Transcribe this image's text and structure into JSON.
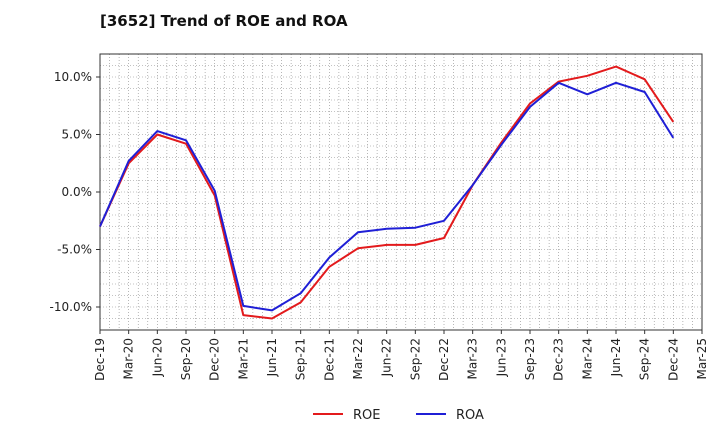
{
  "chart_data": {
    "type": "line",
    "title": "[3652]  Trend of ROE and ROA",
    "xlabel": "",
    "ylabel": "",
    "x": [
      "Dec-19",
      "Mar-20",
      "Jun-20",
      "Sep-20",
      "Dec-20",
      "Mar-21",
      "Jun-21",
      "Sep-21",
      "Dec-21",
      "Mar-22",
      "Jun-22",
      "Sep-22",
      "Dec-22",
      "Mar-23",
      "Jun-23",
      "Sep-23",
      "Dec-23",
      "Mar-24",
      "Jun-24",
      "Sep-24",
      "Dec-24",
      "Mar-25"
    ],
    "x_tick_labels": [
      "Dec-19",
      "Mar-20",
      "Jun-20",
      "Sep-20",
      "Dec-20",
      "Mar-21",
      "Jun-21",
      "Sep-21",
      "Dec-21",
      "Mar-22",
      "Jun-22",
      "Sep-22",
      "Dec-22",
      "Mar-23",
      "Jun-23",
      "Sep-23",
      "Dec-23",
      "Mar-24",
      "Jun-24",
      "Sep-24",
      "Dec-24",
      "Mar-25"
    ],
    "y_tick_values": [
      10,
      5,
      0,
      -5,
      -10
    ],
    "y_tick_labels": [
      "10.0%",
      "5.0%",
      "0.0%",
      "-5.0%",
      "-10.0%"
    ],
    "ylim": [
      -12,
      12
    ],
    "grid": true,
    "legend_position": "bottom-center",
    "series": [
      {
        "name": "ROE",
        "color": "#e31a1c",
        "values": [
          -3.0,
          2.5,
          5.0,
          4.2,
          -0.3,
          -10.7,
          -11.0,
          -9.6,
          -6.5,
          -4.9,
          -4.6,
          -4.6,
          -4.0,
          0.6,
          4.3,
          7.7,
          9.6,
          10.1,
          10.9,
          9.8,
          6.1,
          null
        ]
      },
      {
        "name": "ROA",
        "color": "#1f1fd6",
        "values": [
          -3.0,
          2.7,
          5.3,
          4.5,
          0.1,
          -9.9,
          -10.3,
          -8.8,
          -5.7,
          -3.5,
          -3.2,
          -3.1,
          -2.5,
          0.6,
          4.1,
          7.4,
          9.5,
          8.5,
          9.5,
          8.7,
          4.7,
          null
        ]
      }
    ]
  }
}
